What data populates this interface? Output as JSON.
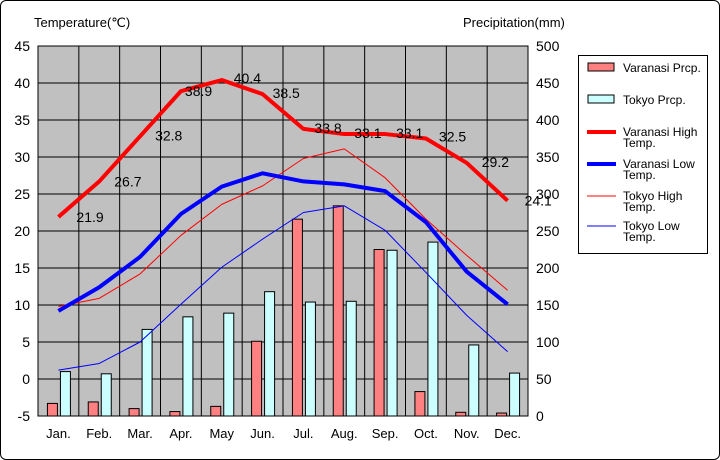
{
  "chart_data": {
    "type": "bar+line",
    "categories": [
      "Jan.",
      "Feb.",
      "Mar.",
      "Apr.",
      "May",
      "Jun.",
      "Jul.",
      "Aug.",
      "Sep.",
      "Oct.",
      "Nov.",
      "Dec."
    ],
    "left_axis": {
      "label": "Temperature(℃)",
      "ylim": [
        -5,
        45
      ],
      "ticks": [
        "-5",
        "0",
        "5",
        "10",
        "15",
        "20",
        "25",
        "30",
        "35",
        "40",
        "45"
      ]
    },
    "right_axis": {
      "label": "Precipitation(mm)",
      "ylim": [
        0,
        500
      ],
      "ticks": [
        "0",
        "50",
        "100",
        "150",
        "200",
        "250",
        "300",
        "350",
        "400",
        "450",
        "500"
      ]
    },
    "series": [
      {
        "name": "Varanasi Prcp.",
        "kind": "bar",
        "axis": "right",
        "color": "#ff8080",
        "values": [
          17,
          19,
          10,
          6,
          13,
          101,
          266,
          284,
          225,
          33,
          5,
          4
        ]
      },
      {
        "name": "Tokyo Prcp.",
        "kind": "bar",
        "axis": "right",
        "color": "#ccffff",
        "values": [
          60,
          57,
          117,
          134,
          139,
          168,
          154,
          155,
          224,
          235,
          96,
          58
        ]
      },
      {
        "name": "Varanasi High Temp.",
        "kind": "line",
        "axis": "left",
        "color": "#ff0000",
        "width": 4,
        "values": [
          21.9,
          26.7,
          32.8,
          38.9,
          40.4,
          38.5,
          33.8,
          33.1,
          33.1,
          32.5,
          29.2,
          24.1
        ],
        "labels": [
          "21.9",
          "26.7",
          "32.8",
          "38.9",
          "40.4",
          "38.5",
          "33.8",
          "33.1",
          "33.1",
          "32.5",
          "29.2",
          "24.1"
        ]
      },
      {
        "name": "Varanasi Low Temp.",
        "kind": "line",
        "axis": "left",
        "color": "#0000ff",
        "width": 4,
        "values": [
          9.2,
          12.4,
          16.5,
          22.3,
          26.0,
          27.8,
          26.7,
          26.3,
          25.4,
          21.2,
          14.5,
          10.1
        ]
      },
      {
        "name": "Tokyo High Temp.",
        "kind": "line",
        "axis": "left",
        "color": "#ff0000",
        "width": 1,
        "values": [
          9.8,
          10.9,
          14.2,
          19.4,
          23.6,
          26.1,
          29.8,
          31.1,
          27.2,
          21.6,
          16.7,
          12.0
        ]
      },
      {
        "name": "Tokyo Low Temp.",
        "kind": "line",
        "axis": "left",
        "color": "#0000ff",
        "width": 1,
        "values": [
          1.2,
          2.1,
          5.0,
          10.1,
          15.1,
          18.9,
          22.5,
          23.4,
          20.1,
          14.4,
          8.6,
          3.7
        ]
      }
    ],
    "grid": true,
    "plot_background": "#c0c0c0",
    "legend_position": "right"
  },
  "legend": {
    "items": [
      {
        "line1": "Varanasi Prcp.",
        "line2": ""
      },
      {
        "line1": "Tokyo Prcp.",
        "line2": ""
      },
      {
        "line1": "Varanasi High",
        "line2": "Temp."
      },
      {
        "line1": "Varanasi Low",
        "line2": "Temp."
      },
      {
        "line1": "Tokyo High",
        "line2": "Temp."
      },
      {
        "line1": "Tokyo Low",
        "line2": "Temp."
      }
    ]
  }
}
